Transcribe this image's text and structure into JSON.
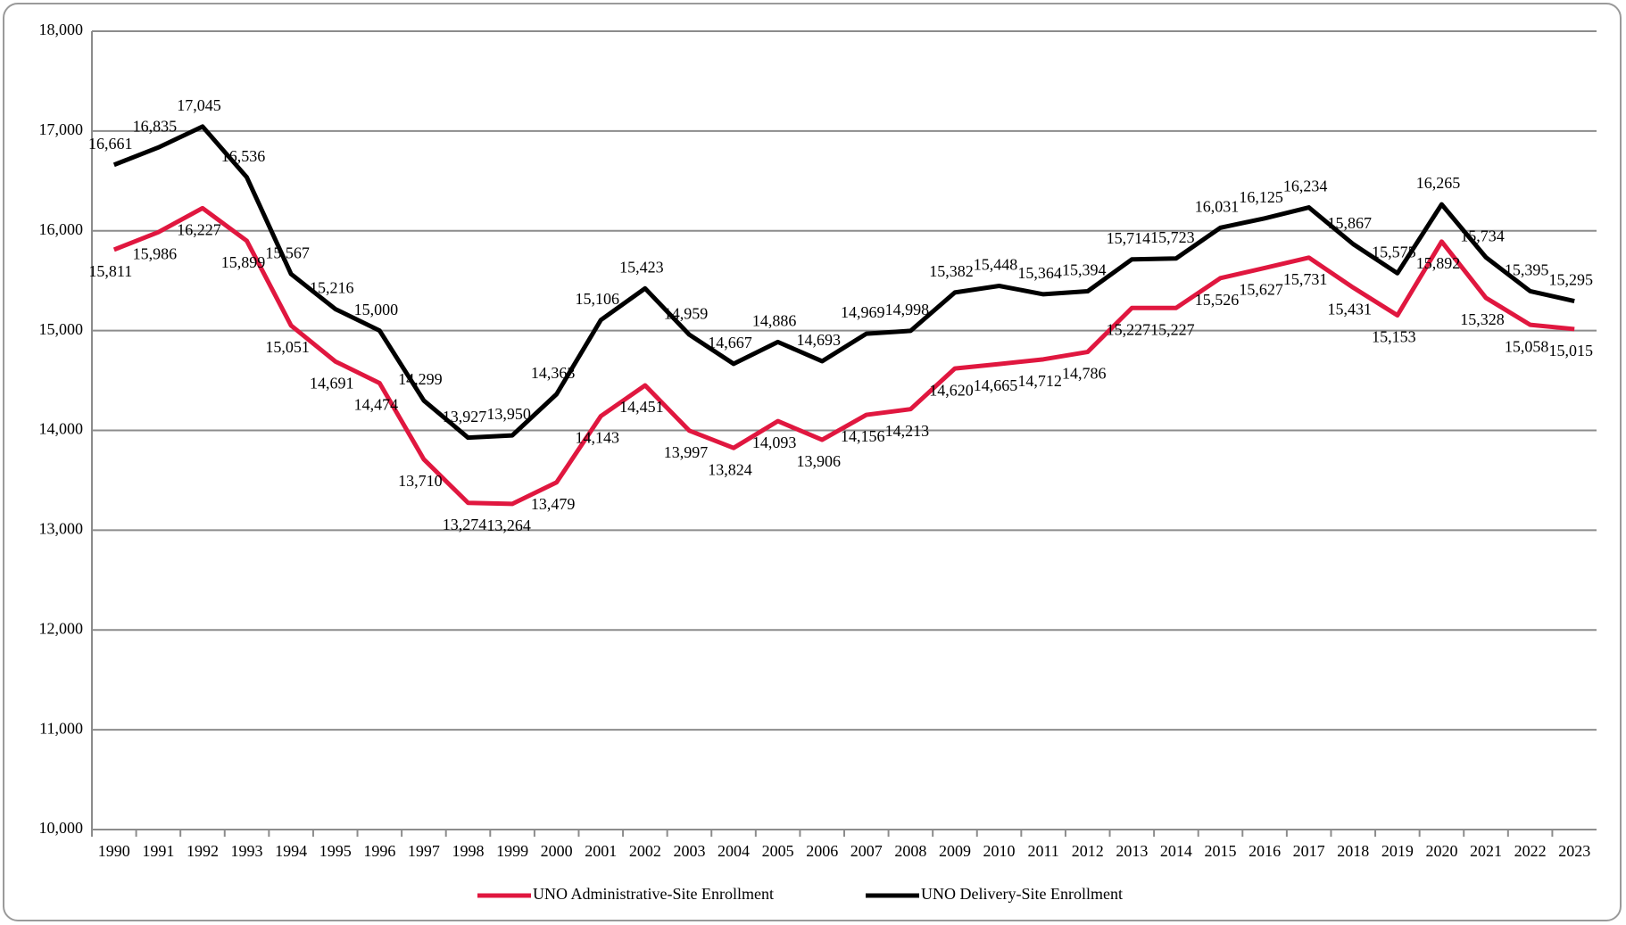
{
  "chart_data": {
    "type": "line",
    "categories": [
      "1990",
      "1991",
      "1992",
      "1993",
      "1994",
      "1995",
      "1996",
      "1997",
      "1998",
      "1999",
      "2000",
      "2001",
      "2002",
      "2003",
      "2004",
      "2005",
      "2006",
      "2007",
      "2008",
      "2009",
      "2010",
      "2011",
      "2012",
      "2013",
      "2014",
      "2015",
      "2016",
      "2017",
      "2018",
      "2019",
      "2020",
      "2021",
      "2022",
      "2023"
    ],
    "series": [
      {
        "name": "UNO Administrative-Site Enrollment",
        "color": "#e0173f",
        "values": [
          15811,
          15986,
          16227,
          15899,
          15051,
          14691,
          14474,
          13710,
          13274,
          13264,
          13479,
          14143,
          14451,
          13997,
          13824,
          14093,
          13906,
          14156,
          14213,
          14620,
          14665,
          14712,
          14786,
          15227,
          15227,
          15526,
          15627,
          15731,
          15431,
          15153,
          15892,
          15328,
          15058,
          15015
        ],
        "value_labels": [
          "15,811",
          "15,986",
          "16,227",
          "15,899",
          "15,051",
          "14,691",
          "14,474",
          "13,710",
          "13,274",
          "13,264",
          "13,479",
          "14,143",
          "14,451",
          "13,997",
          "13,824",
          "14,093",
          "13,906",
          "14,156",
          "14,213",
          "14,620",
          "14,665",
          "14,712",
          "14,786",
          "15,227",
          "15,227",
          "15,526",
          "15,627",
          "15,731",
          "15,431",
          "15,153",
          "15,892",
          "15,328",
          "15,058",
          "15,015"
        ]
      },
      {
        "name": "UNO Delivery-Site Enrollment",
        "color": "#000000",
        "values": [
          16661,
          16835,
          17045,
          16536,
          15567,
          15216,
          15000,
          14299,
          13927,
          13950,
          14363,
          15106,
          15423,
          14959,
          14667,
          14886,
          14693,
          14969,
          14998,
          15382,
          15448,
          15364,
          15394,
          15714,
          15723,
          16031,
          16125,
          16234,
          15867,
          15575,
          16265,
          15734,
          15395,
          15295
        ],
        "value_labels": [
          "16,661",
          "16,835",
          "17,045",
          "16,536",
          "15,567",
          "15,216",
          "15,000",
          "14,299",
          "13,927",
          "13,950",
          "14,363",
          "15,106",
          "15,423",
          "14,959",
          "14,667",
          "14,886",
          "14,693",
          "14,969",
          "14,998",
          "15,382",
          "15,448",
          "15,364",
          "15,394",
          "15,714",
          "15,723",
          "16,031",
          "16,125",
          "16,234",
          "15,867",
          "15,575",
          "16,265",
          "15,734",
          "15,395",
          "15,295"
        ]
      }
    ],
    "ylim": [
      10000,
      18000
    ],
    "yticks": [
      {
        "value": 10000,
        "label": "10,000"
      },
      {
        "value": 11000,
        "label": "11,000"
      },
      {
        "value": 12000,
        "label": "12,000"
      },
      {
        "value": 13000,
        "label": "13,000"
      },
      {
        "value": 14000,
        "label": "14,000"
      },
      {
        "value": 15000,
        "label": "15,000"
      },
      {
        "value": 16000,
        "label": "16,000"
      },
      {
        "value": 17000,
        "label": "17,000"
      },
      {
        "value": 18000,
        "label": "18,000"
      }
    ],
    "grid": true,
    "legend": "bottom"
  }
}
